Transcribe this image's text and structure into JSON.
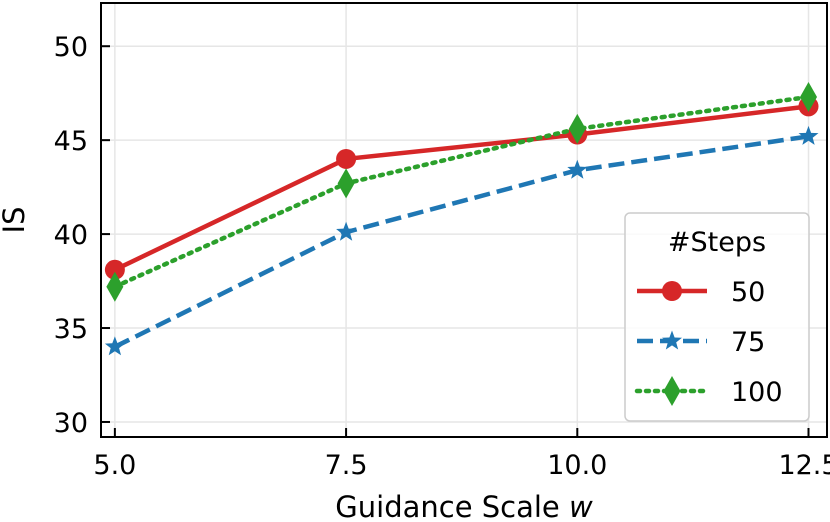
{
  "chart_data": {
    "type": "line",
    "title": "",
    "xlabel": "Guidance Scale",
    "xlabel_var": "w",
    "ylabel": "IS",
    "x": [
      5.0,
      7.5,
      10.0,
      12.5
    ],
    "x_ticks": [
      "5.0",
      "7.5",
      "10.0",
      "12.5"
    ],
    "y_ticks": [
      "30",
      "35",
      "40",
      "45",
      "50"
    ],
    "xlim": [
      4.85,
      12.7
    ],
    "ylim": [
      29.2,
      52.3
    ],
    "grid": true,
    "legend": {
      "title": "#Steps",
      "placement": "lower-right"
    },
    "series": [
      {
        "name": "50",
        "values": [
          38.1,
          44.0,
          45.3,
          46.8
        ],
        "color": "#d62728",
        "linestyle": "solid",
        "marker": "circle"
      },
      {
        "name": "75",
        "values": [
          34.0,
          40.1,
          43.4,
          45.2
        ],
        "color": "#1f77b4",
        "linestyle": "dashed",
        "marker": "star"
      },
      {
        "name": "100",
        "values": [
          37.2,
          42.7,
          45.6,
          47.3
        ],
        "color": "#2ca02c",
        "linestyle": "dotted",
        "marker": "diamond"
      }
    ]
  }
}
